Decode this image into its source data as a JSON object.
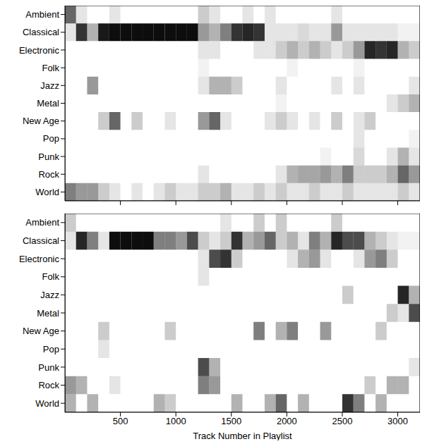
{
  "chart_data": [
    {
      "type": "heatmap",
      "y_categories": [
        "Ambient",
        "Classical",
        "Electronic",
        "Folk",
        "Jazz",
        "Metal",
        "New Age",
        "Pop",
        "Punk",
        "Rock",
        "World"
      ],
      "x_bins": [
        0,
        100,
        200,
        300,
        400,
        500,
        600,
        700,
        800,
        900,
        1000,
        1100,
        1200,
        1300,
        1400,
        1500,
        1600,
        1700,
        1800,
        1900,
        2000,
        2100,
        2200,
        2300,
        2400,
        2500,
        2600,
        2700,
        2800,
        2900,
        3000,
        3100,
        3200
      ],
      "xlim": [
        0,
        3200
      ],
      "xticks": [
        500,
        1000,
        1500,
        2000,
        2500,
        3000
      ],
      "tick_labels": "y",
      "cells": [
        [
          0.6,
          0.1,
          0,
          0,
          0.1,
          0,
          0,
          0,
          0,
          0,
          0,
          0,
          0.2,
          0.1,
          0,
          0,
          0.1,
          0,
          0.1,
          0,
          0,
          0,
          0,
          0,
          0.1,
          0,
          0,
          0,
          0,
          0,
          0,
          0
        ],
        [
          0.1,
          0.8,
          0.3,
          0.9,
          0.95,
          0.95,
          0.95,
          0.95,
          0.95,
          0.95,
          0.95,
          0.95,
          0.4,
          0.3,
          0.5,
          0.8,
          0.85,
          0.8,
          0.1,
          0.1,
          0.1,
          0.15,
          0.1,
          0.1,
          0.4,
          0.1,
          0.1,
          0.1,
          0.1,
          0.1,
          0.05,
          0.05
        ],
        [
          0,
          0,
          0,
          0,
          0,
          0,
          0,
          0,
          0,
          0,
          0,
          0,
          0.1,
          0.1,
          0,
          0,
          0,
          0.1,
          0.1,
          0.2,
          0.3,
          0.2,
          0.3,
          0.2,
          0.1,
          0.2,
          0.4,
          0.85,
          0.8,
          0.85,
          0.3,
          0.2
        ],
        [
          0,
          0,
          0,
          0,
          0,
          0,
          0,
          0,
          0,
          0,
          0,
          0,
          0.05,
          0,
          0,
          0,
          0,
          0,
          0,
          0,
          0.05,
          0,
          0,
          0,
          0,
          0,
          0.05,
          0,
          0,
          0,
          0,
          0
        ],
        [
          0,
          0,
          0.4,
          0,
          0,
          0,
          0,
          0,
          0,
          0,
          0,
          0,
          0.1,
          0.3,
          0.3,
          0.2,
          0,
          0,
          0,
          0.1,
          0,
          0,
          0,
          0,
          0.1,
          0,
          0.1,
          0,
          0,
          0,
          0,
          0.1
        ],
        [
          0,
          0,
          0,
          0,
          0,
          0,
          0,
          0,
          0,
          0,
          0,
          0,
          0,
          0,
          0,
          0,
          0,
          0,
          0,
          0.05,
          0,
          0,
          0,
          0,
          0,
          0,
          0,
          0,
          0,
          0.1,
          0.2,
          0.3
        ],
        [
          0,
          0,
          0,
          0.2,
          0.6,
          0,
          0.2,
          0,
          0,
          0.1,
          0,
          0,
          0.4,
          0.6,
          0.1,
          0,
          0,
          0,
          0.1,
          0.2,
          0.1,
          0,
          0.1,
          0,
          0.2,
          0,
          0.1,
          0.2,
          0,
          0,
          0,
          0
        ],
        [
          0,
          0,
          0,
          0,
          0,
          0,
          0,
          0,
          0,
          0,
          0,
          0,
          0,
          0,
          0,
          0,
          0,
          0,
          0,
          0,
          0,
          0,
          0,
          0,
          0,
          0,
          0.1,
          0,
          0,
          0,
          0,
          0.05
        ],
        [
          0,
          0,
          0,
          0,
          0,
          0,
          0,
          0,
          0,
          0,
          0,
          0,
          0,
          0,
          0,
          0,
          0,
          0,
          0,
          0,
          0,
          0,
          0,
          0.05,
          0,
          0,
          0.15,
          0,
          0,
          0.1,
          0.3,
          0.1
        ],
        [
          0,
          0,
          0,
          0,
          0,
          0,
          0,
          0,
          0,
          0,
          0,
          0,
          0.1,
          0,
          0,
          0,
          0,
          0,
          0,
          0.1,
          0.3,
          0.35,
          0.35,
          0.4,
          0.3,
          0.5,
          0.2,
          0.2,
          0.2,
          0.3,
          0.6,
          0.4
        ],
        [
          0.5,
          0.4,
          0.4,
          0.2,
          0.1,
          0,
          0.1,
          0,
          0.1,
          0.2,
          0.1,
          0.1,
          0.2,
          0.2,
          0.3,
          0.1,
          0.1,
          0.2,
          0.1,
          0.2,
          0.1,
          0.1,
          0.2,
          0.1,
          0.1,
          0.2,
          0.1,
          0.1,
          0.1,
          0.1,
          0.2,
          0.1
        ]
      ]
    },
    {
      "type": "heatmap",
      "y_categories": [
        "Ambient",
        "Classical",
        "Electronic",
        "Folk",
        "Jazz",
        "Metal",
        "New Age",
        "Pop",
        "Punk",
        "Rock",
        "World"
      ],
      "x_bins": [
        0,
        100,
        200,
        300,
        400,
        500,
        600,
        700,
        800,
        900,
        1000,
        1100,
        1200,
        1300,
        1400,
        1500,
        1600,
        1700,
        1800,
        1900,
        2000,
        2100,
        2200,
        2300,
        2400,
        2500,
        2600,
        2700,
        2800,
        2900,
        3000,
        3100,
        3200
      ],
      "xlim": [
        0,
        3200
      ],
      "xticks": [
        500,
        1000,
        1500,
        2000,
        2500,
        3000
      ],
      "x_label": "Track Number in Playlist",
      "cells": [
        [
          0.2,
          0,
          0,
          0,
          0,
          0,
          0,
          0,
          0,
          0,
          0,
          0,
          0,
          0,
          0.1,
          0,
          0,
          0.2,
          0,
          0.2,
          0,
          0,
          0,
          0,
          0.2,
          0,
          0,
          0,
          0,
          0,
          0,
          0
        ],
        [
          0.1,
          0.85,
          0.5,
          0.1,
          0.95,
          0.95,
          0.95,
          0.95,
          0.5,
          0.5,
          0.4,
          0.7,
          0.2,
          0.1,
          0.2,
          0.8,
          0.3,
          0.4,
          0.6,
          0.2,
          0.3,
          0.1,
          0.5,
          0.3,
          0.85,
          0.7,
          0.7,
          0.3,
          0.2,
          0.1,
          0.05,
          0.05
        ],
        [
          0,
          0,
          0,
          0,
          0,
          0,
          0,
          0,
          0,
          0,
          0,
          0,
          0.1,
          0.7,
          0.8,
          0.2,
          0,
          0,
          0,
          0,
          0.1,
          0.3,
          0.4,
          0.1,
          0,
          0,
          0.1,
          0.4,
          0.5,
          0.2,
          0,
          0
        ],
        [
          0,
          0,
          0,
          0,
          0,
          0,
          0,
          0,
          0,
          0,
          0,
          0,
          0.1,
          0,
          0,
          0,
          0,
          0,
          0,
          0,
          0,
          0,
          0,
          0,
          0,
          0,
          0,
          0,
          0,
          0,
          0,
          0
        ],
        [
          0,
          0,
          0,
          0,
          0,
          0,
          0,
          0,
          0,
          0,
          0,
          0,
          0,
          0,
          0,
          0,
          0,
          0,
          0,
          0,
          0,
          0,
          0,
          0,
          0,
          0.2,
          0,
          0,
          0,
          0,
          0.85,
          0.3
        ],
        [
          0,
          0,
          0,
          0,
          0,
          0,
          0,
          0,
          0,
          0,
          0,
          0,
          0,
          0,
          0,
          0,
          0,
          0,
          0,
          0,
          0,
          0,
          0,
          0,
          0,
          0,
          0,
          0,
          0,
          0.2,
          0.1,
          0.7
        ],
        [
          0,
          0,
          0,
          0.2,
          0,
          0,
          0,
          0,
          0,
          0.2,
          0,
          0,
          0,
          0,
          0,
          0,
          0,
          0.5,
          0,
          0.3,
          0.5,
          0,
          0,
          0.4,
          0,
          0,
          0,
          0,
          0.2,
          0,
          0,
          0
        ],
        [
          0,
          0,
          0,
          0.1,
          0,
          0,
          0,
          0,
          0,
          0,
          0,
          0,
          0,
          0,
          0,
          0,
          0,
          0,
          0,
          0,
          0,
          0,
          0,
          0,
          0,
          0,
          0,
          0,
          0,
          0,
          0,
          0
        ],
        [
          0,
          0,
          0,
          0,
          0,
          0,
          0,
          0,
          0,
          0,
          0,
          0,
          0.7,
          0.3,
          0,
          0,
          0,
          0,
          0,
          0,
          0,
          0,
          0,
          0,
          0,
          0,
          0,
          0,
          0,
          0,
          0,
          0.1
        ],
        [
          0.4,
          0.3,
          0,
          0,
          0.1,
          0,
          0,
          0,
          0,
          0,
          0,
          0,
          0.5,
          0.4,
          0,
          0,
          0,
          0,
          0,
          0,
          0,
          0,
          0,
          0,
          0,
          0,
          0,
          0.2,
          0,
          0.3,
          0.3,
          0
        ],
        [
          0.3,
          0,
          0.3,
          0,
          0,
          0,
          0,
          0,
          0.3,
          0.2,
          0,
          0,
          0,
          0,
          0,
          0.3,
          0,
          0,
          0.3,
          0.6,
          0,
          0.3,
          0,
          0,
          0,
          0.8,
          0.5,
          0,
          0.3,
          0,
          0,
          0
        ]
      ]
    }
  ]
}
